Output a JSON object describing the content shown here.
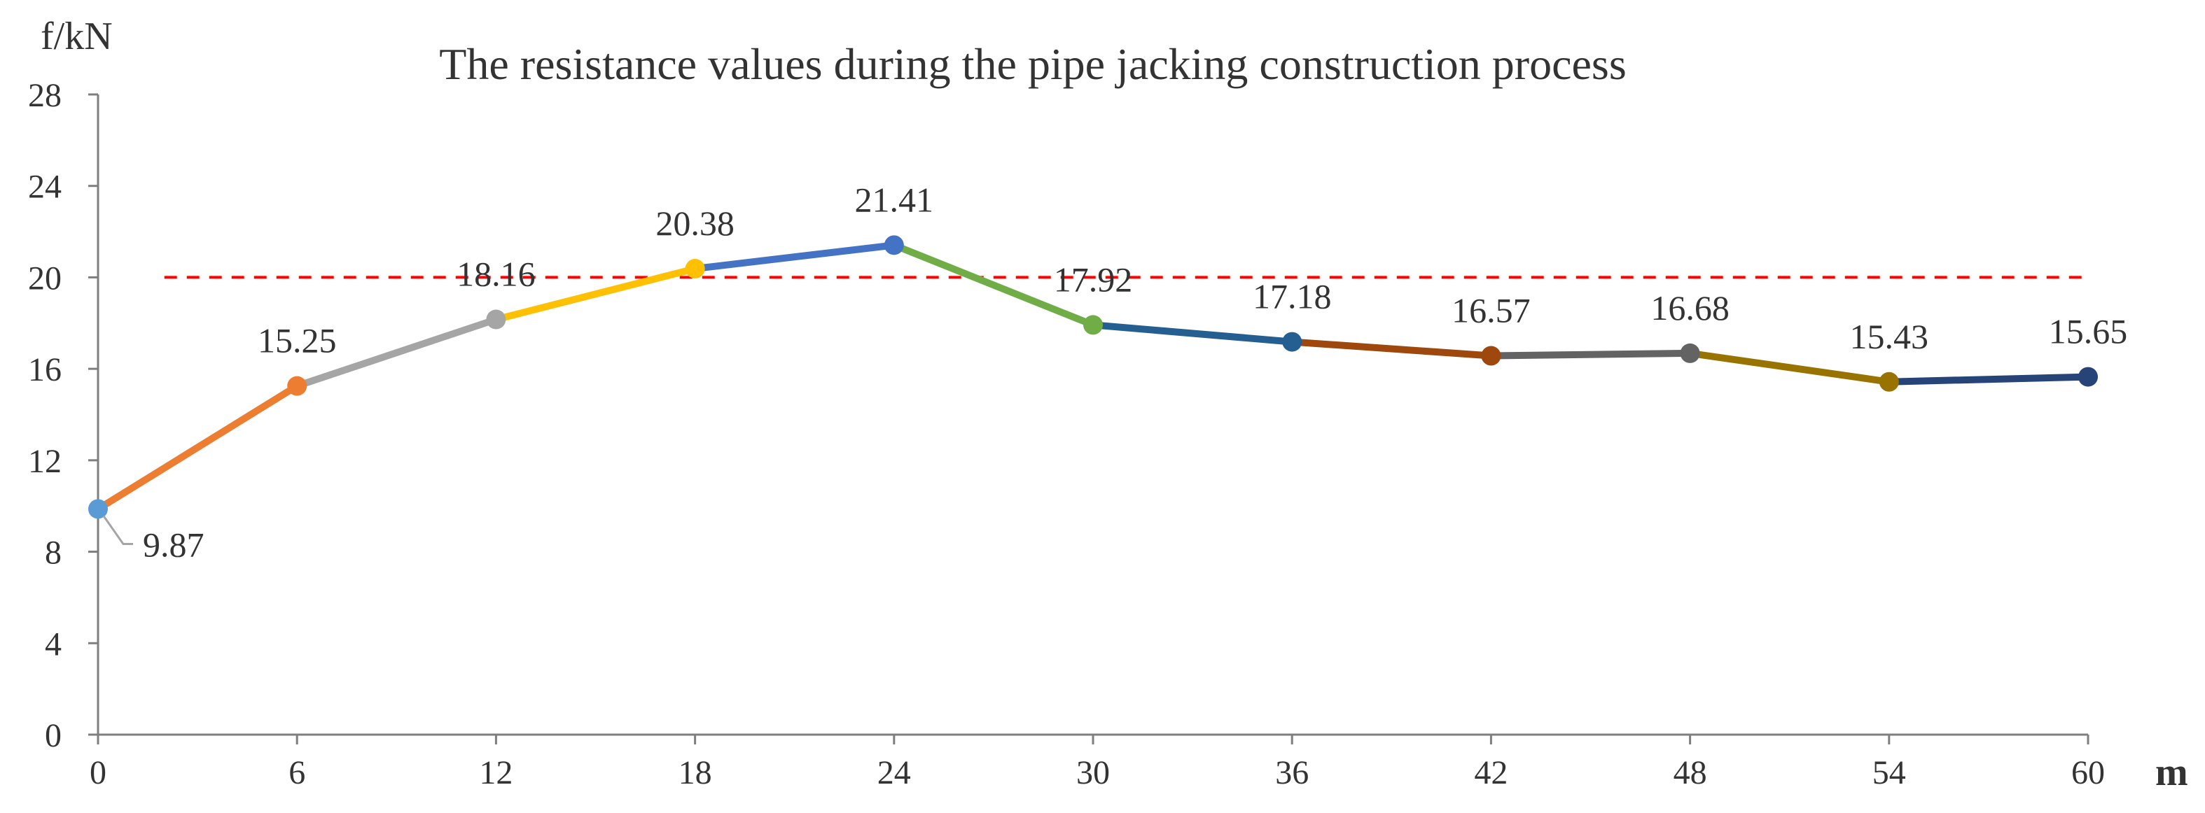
{
  "chart_data": {
    "type": "line",
    "title": "The resistance values during the pipe jacking construction process",
    "xlabel": "m",
    "ylabel": "f/kN",
    "x": [
      0,
      6,
      12,
      18,
      24,
      30,
      36,
      42,
      48,
      54,
      60
    ],
    "values": [
      9.87,
      15.25,
      18.16,
      20.38,
      21.41,
      17.92,
      17.18,
      16.57,
      16.68,
      15.43,
      15.65
    ],
    "data_labels": [
      "9.87",
      "15.25",
      "18.16",
      "20.38",
      "21.41",
      "17.92",
      "17.18",
      "16.57",
      "16.68",
      "15.43",
      "15.65"
    ],
    "x_ticks": [
      "0",
      "6",
      "12",
      "18",
      "24",
      "30",
      "36",
      "42",
      "48",
      "54",
      "60"
    ],
    "y_ticks": [
      "0",
      "4",
      "8",
      "12",
      "16",
      "20",
      "24",
      "28"
    ],
    "xlim": [
      0,
      60
    ],
    "ylim": [
      0,
      28
    ],
    "grid": false,
    "reference_line": {
      "y": 20,
      "style": "dashed",
      "color": "#ff0000"
    },
    "point_colors": [
      "#5b9bd5",
      "#ed7d31",
      "#a5a5a5",
      "#ffc000",
      "#4472c4",
      "#70ad47",
      "#255e91",
      "#9e480e",
      "#636363",
      "#997300",
      "#264478"
    ],
    "segment_colors": [
      "#ed7d31",
      "#a5a5a5",
      "#ffc000",
      "#4472c4",
      "#70ad47",
      "#255e91",
      "#9e480e",
      "#636363",
      "#997300",
      "#264478"
    ]
  }
}
